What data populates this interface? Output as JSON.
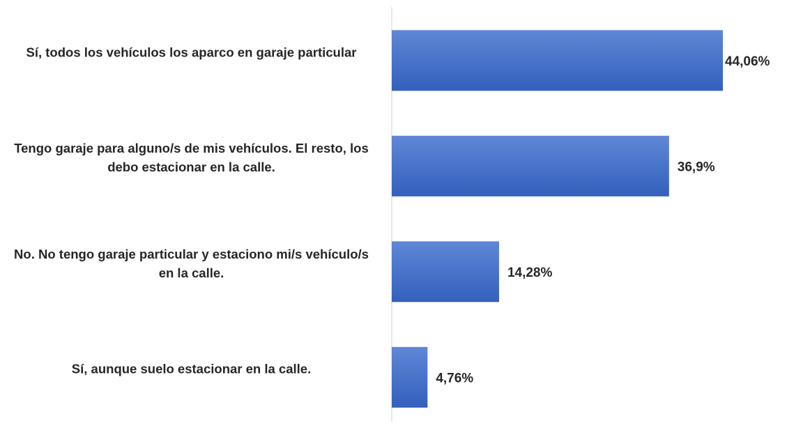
{
  "chart_data": {
    "type": "bar",
    "orientation": "horizontal",
    "categories": [
      "Sí, todos los vehículos los aparco en garaje particular",
      "Tengo garaje para alguno/s de mis vehículos. El resto, los debo estacionar en la calle.",
      "No. No tengo garaje particular y estaciono mi/s vehículo/s en la calle.",
      "Sí, aunque suelo estacionar en la calle."
    ],
    "values": [
      44.06,
      36.9,
      14.28,
      4.76
    ],
    "value_labels": [
      "44,06%",
      "36,9%",
      "14,28%",
      "4,76%"
    ],
    "color": "#4472c4"
  }
}
